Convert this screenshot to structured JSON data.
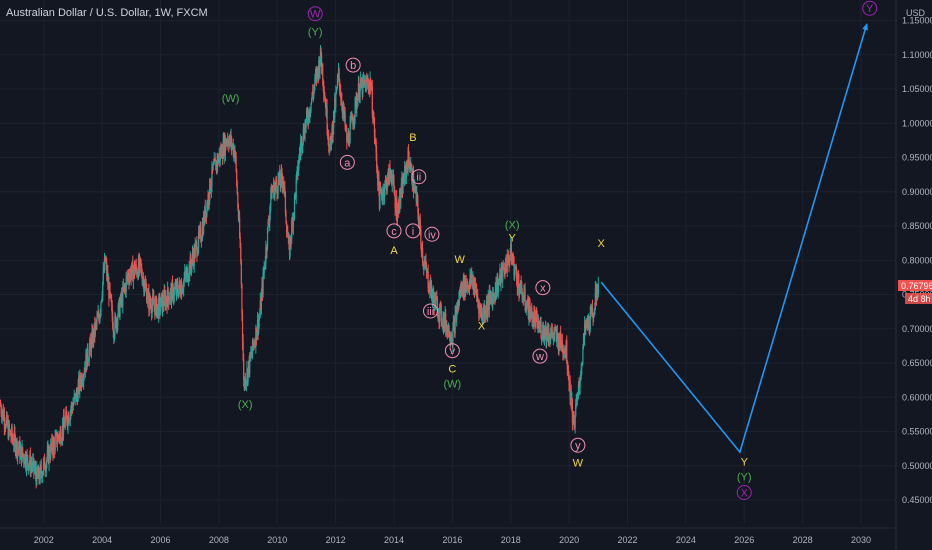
{
  "header": {
    "title": "Australian Dollar / U.S. Dollar, 1W, FXCM"
  },
  "colors": {
    "background": "#131722",
    "grid": "#1e222d",
    "up": "#26a69a",
    "down": "#ef5350",
    "projection": "#2196f3",
    "wave_yellow": "#f5d547",
    "wave_green": "#4caf50",
    "wave_purple": "#9c27b0",
    "wave_pink": "#f48fb1",
    "price_tag": "#ef5350"
  },
  "chart_data": {
    "type": "candlestick",
    "title": "Australian Dollar / U.S. Dollar, 1W, FXCM",
    "currency_label": "USD",
    "xlim": [
      2000.5,
      2031.2
    ],
    "ylim": [
      0.415,
      1.18
    ],
    "y_ticks": [
      "0.45000",
      "0.50000",
      "0.55000",
      "0.60000",
      "0.65000",
      "0.70000",
      "0.75000",
      "0.80000",
      "0.85000",
      "0.90000",
      "0.95000",
      "1.00000",
      "1.05000",
      "1.10000",
      "1.15000"
    ],
    "x_ticks": [
      "2002",
      "2004",
      "2006",
      "2008",
      "2010",
      "2012",
      "2014",
      "2016",
      "2018",
      "2020",
      "2022",
      "2024",
      "2026",
      "2028",
      "2030"
    ],
    "grid": true,
    "last_price": "0.76796",
    "countdown": "4d 8h",
    "price_path": [
      [
        2000.5,
        0.59
      ],
      [
        2000.8,
        0.55
      ],
      [
        2001.2,
        0.52
      ],
      [
        2001.6,
        0.5
      ],
      [
        2001.8,
        0.48
      ],
      [
        2002.2,
        0.52
      ],
      [
        2002.6,
        0.55
      ],
      [
        2003.1,
        0.6
      ],
      [
        2003.5,
        0.66
      ],
      [
        2003.9,
        0.72
      ],
      [
        2004.1,
        0.8
      ],
      [
        2004.4,
        0.7
      ],
      [
        2004.9,
        0.78
      ],
      [
        2005.3,
        0.79
      ],
      [
        2005.6,
        0.74
      ],
      [
        2005.9,
        0.73
      ],
      [
        2006.3,
        0.75
      ],
      [
        2006.7,
        0.76
      ],
      [
        2007.0,
        0.79
      ],
      [
        2007.4,
        0.84
      ],
      [
        2007.8,
        0.93
      ],
      [
        2008.3,
        0.98
      ],
      [
        2008.55,
        0.96
      ],
      [
        2008.75,
        0.8
      ],
      [
        2008.85,
        0.62
      ],
      [
        2009.0,
        0.64
      ],
      [
        2009.4,
        0.72
      ],
      [
        2009.8,
        0.9
      ],
      [
        2010.2,
        0.92
      ],
      [
        2010.4,
        0.81
      ],
      [
        2010.8,
        0.97
      ],
      [
        2011.1,
        1.02
      ],
      [
        2011.5,
        1.1
      ],
      [
        2011.8,
        0.96
      ],
      [
        2012.1,
        1.07
      ],
      [
        2012.4,
        0.97
      ],
      [
        2012.8,
        1.05
      ],
      [
        2013.2,
        1.06
      ],
      [
        2013.5,
        0.89
      ],
      [
        2013.9,
        0.93
      ],
      [
        2014.1,
        0.87
      ],
      [
        2014.5,
        0.95
      ],
      [
        2014.8,
        0.88
      ],
      [
        2015.0,
        0.8
      ],
      [
        2015.3,
        0.75
      ],
      [
        2015.6,
        0.72
      ],
      [
        2016.0,
        0.69
      ],
      [
        2016.3,
        0.76
      ],
      [
        2016.7,
        0.77
      ],
      [
        2017.0,
        0.72
      ],
      [
        2017.4,
        0.75
      ],
      [
        2017.8,
        0.79
      ],
      [
        2018.0,
        0.81
      ],
      [
        2018.3,
        0.76
      ],
      [
        2018.7,
        0.72
      ],
      [
        2019.0,
        0.7
      ],
      [
        2019.5,
        0.69
      ],
      [
        2019.9,
        0.67
      ],
      [
        2020.15,
        0.56
      ],
      [
        2020.3,
        0.6
      ],
      [
        2020.55,
        0.7
      ],
      [
        2020.8,
        0.72
      ],
      [
        2021.0,
        0.768
      ]
    ],
    "projection": [
      [
        2021.1,
        0.768
      ],
      [
        2025.85,
        0.52
      ],
      [
        2030.2,
        1.145
      ]
    ],
    "annotations": [
      {
        "text": "W",
        "x": 2011.3,
        "y": 1.16,
        "color": "purple",
        "circle": true
      },
      {
        "text": "(Y)",
        "x": 2011.3,
        "y": 1.134,
        "color": "green",
        "circle": false
      },
      {
        "text": "(W)",
        "x": 2008.4,
        "y": 1.037,
        "color": "green",
        "circle": false
      },
      {
        "text": "b",
        "x": 2012.6,
        "y": 1.085,
        "color": "pink",
        "circle": true
      },
      {
        "text": "a",
        "x": 2012.4,
        "y": 0.943,
        "color": "pink",
        "circle": true
      },
      {
        "text": "B",
        "x": 2014.65,
        "y": 0.98,
        "color": "yellow",
        "circle": false
      },
      {
        "text": "ii",
        "x": 2014.85,
        "y": 0.922,
        "color": "pink",
        "circle": true
      },
      {
        "text": "c",
        "x": 2014.0,
        "y": 0.843,
        "color": "pink",
        "circle": true
      },
      {
        "text": "A",
        "x": 2014.0,
        "y": 0.815,
        "color": "yellow",
        "circle": false
      },
      {
        "text": "i",
        "x": 2014.65,
        "y": 0.843,
        "color": "pink",
        "circle": true
      },
      {
        "text": "iv",
        "x": 2015.3,
        "y": 0.838,
        "color": "pink",
        "circle": true
      },
      {
        "text": "W",
        "x": 2016.25,
        "y": 0.802,
        "color": "yellow",
        "circle": false
      },
      {
        "text": "(X)",
        "x": 2018.05,
        "y": 0.852,
        "color": "green",
        "circle": false
      },
      {
        "text": "Y",
        "x": 2018.05,
        "y": 0.833,
        "color": "yellow",
        "circle": false
      },
      {
        "text": "X",
        "x": 2021.1,
        "y": 0.825,
        "color": "yellow",
        "circle": false
      },
      {
        "text": "x",
        "x": 2019.1,
        "y": 0.76,
        "color": "pink",
        "circle": true
      },
      {
        "text": "iii",
        "x": 2015.25,
        "y": 0.726,
        "color": "pink",
        "circle": true
      },
      {
        "text": "X",
        "x": 2017.0,
        "y": 0.705,
        "color": "yellow",
        "circle": false
      },
      {
        "text": "v",
        "x": 2016.0,
        "y": 0.668,
        "color": "pink",
        "circle": true
      },
      {
        "text": "C",
        "x": 2016.0,
        "y": 0.642,
        "color": "yellow",
        "circle": false
      },
      {
        "text": "(W)",
        "x": 2016.0,
        "y": 0.62,
        "color": "green",
        "circle": false
      },
      {
        "text": "w",
        "x": 2019.0,
        "y": 0.66,
        "color": "pink",
        "circle": true
      },
      {
        "text": "(X)",
        "x": 2008.9,
        "y": 0.59,
        "color": "green",
        "circle": false
      },
      {
        "text": "y",
        "x": 2020.3,
        "y": 0.53,
        "color": "pink",
        "circle": true
      },
      {
        "text": "W",
        "x": 2020.3,
        "y": 0.505,
        "color": "yellow",
        "circle": false
      },
      {
        "text": "Y",
        "x": 2026.0,
        "y": 0.506,
        "color": "yellow",
        "circle": false
      },
      {
        "text": "(Y)",
        "x": 2026.0,
        "y": 0.484,
        "color": "green",
        "circle": false
      },
      {
        "text": "X",
        "x": 2026.0,
        "y": 0.461,
        "color": "purple",
        "circle": true
      },
      {
        "text": "Y",
        "x": 2030.3,
        "y": 1.168,
        "color": "purple",
        "circle": true
      }
    ]
  }
}
